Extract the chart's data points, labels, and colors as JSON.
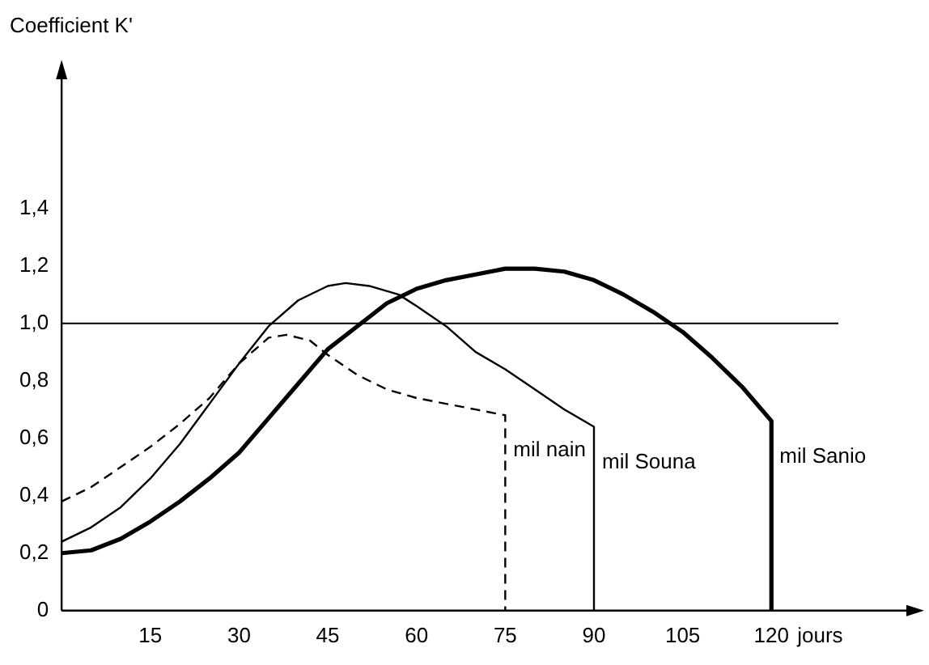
{
  "chart_data": {
    "type": "line",
    "xlabel": "jours",
    "ylabel": "Coefficient K'",
    "xlim": [
      0,
      145
    ],
    "xticks": [
      15,
      30,
      45,
      60,
      75,
      90,
      105,
      120
    ],
    "ylim": [
      0,
      1.9
    ],
    "yticks": [
      0,
      {
        "value": 0.2,
        "label": "0,2"
      },
      {
        "value": 0.4,
        "label": "0,4"
      },
      {
        "value": 0.6,
        "label": "0,6"
      },
      {
        "value": 0.8,
        "label": "0,8"
      },
      {
        "value": 1.0,
        "label": "1,0"
      },
      {
        "value": 1.2,
        "label": "1,2"
      },
      {
        "value": 1.4,
        "label": "1,4"
      }
    ],
    "grid": false,
    "legend": false,
    "marker": "none",
    "ref_lines": [
      {
        "axis": "y",
        "value": 1.0,
        "color": "#000000"
      }
    ],
    "series": [
      {
        "name": "mil nain",
        "color": "#000000",
        "line_style": "dashed",
        "x": [
          0,
          5,
          10,
          15,
          20,
          25,
          30,
          35,
          38,
          42,
          45,
          50,
          55,
          60,
          65,
          70,
          75,
          75
        ],
        "values": [
          0.38,
          0.43,
          0.5,
          0.57,
          0.65,
          0.74,
          0.86,
          0.95,
          0.96,
          0.94,
          0.89,
          0.82,
          0.77,
          0.74,
          0.72,
          0.7,
          0.68,
          0
        ]
      },
      {
        "name": "mil Souna",
        "color": "#000000",
        "line_style": "solid",
        "x": [
          0,
          5,
          10,
          15,
          20,
          25,
          30,
          35,
          40,
          45,
          48,
          52,
          57,
          60,
          65,
          70,
          75,
          80,
          85,
          90,
          90
        ],
        "values": [
          0.24,
          0.29,
          0.36,
          0.46,
          0.58,
          0.72,
          0.86,
          0.99,
          1.08,
          1.13,
          1.14,
          1.13,
          1.1,
          1.06,
          0.99,
          0.9,
          0.84,
          0.77,
          0.7,
          0.64,
          0
        ]
      },
      {
        "name": "mil Sanio",
        "color": "#000000",
        "line_style": "solid",
        "x": [
          0,
          5,
          10,
          15,
          20,
          25,
          30,
          35,
          40,
          45,
          50,
          55,
          60,
          65,
          70,
          75,
          80,
          85,
          90,
          95,
          100,
          105,
          110,
          115,
          120,
          120
        ],
        "values": [
          0.2,
          0.21,
          0.25,
          0.31,
          0.38,
          0.46,
          0.55,
          0.67,
          0.79,
          0.91,
          0.99,
          1.07,
          1.12,
          1.15,
          1.17,
          1.19,
          1.19,
          1.18,
          1.15,
          1.1,
          1.04,
          0.97,
          0.88,
          0.78,
          0.66,
          0
        ]
      }
    ]
  }
}
